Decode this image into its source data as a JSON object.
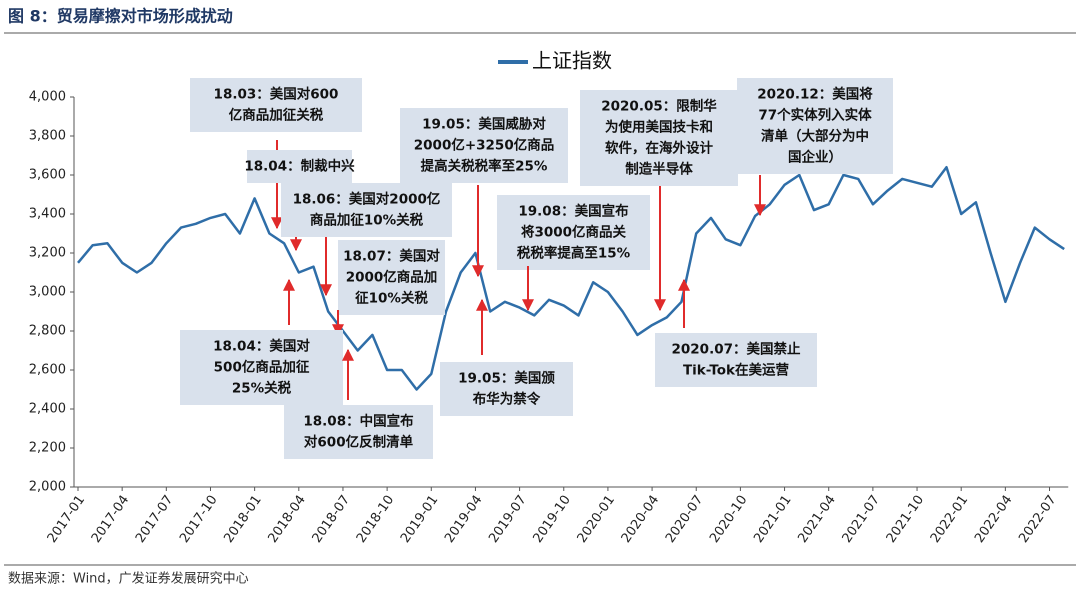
{
  "chart_data": {
    "type": "line",
    "title": "图 8：贸易摩擦对市场形成扰动",
    "source": "数据来源：Wind，广发证券发展研究中心",
    "x": [
      "2017-01",
      "2017-02",
      "2017-03",
      "2017-04",
      "2017-05",
      "2017-06",
      "2017-07",
      "2017-08",
      "2017-09",
      "2017-10",
      "2017-11",
      "2017-12",
      "2018-01",
      "2018-02",
      "2018-03",
      "2018-04",
      "2018-05",
      "2018-06",
      "2018-07",
      "2018-08",
      "2018-09",
      "2018-10",
      "2018-11",
      "2018-12",
      "2019-01",
      "2019-02",
      "2019-03",
      "2019-04",
      "2019-05",
      "2019-06",
      "2019-07",
      "2019-08",
      "2019-09",
      "2019-10",
      "2019-11",
      "2019-12",
      "2020-01",
      "2020-02",
      "2020-03",
      "2020-04",
      "2020-05",
      "2020-06",
      "2020-07",
      "2020-08",
      "2020-09",
      "2020-10",
      "2020-11",
      "2020-12",
      "2021-01",
      "2021-02",
      "2021-03",
      "2021-04",
      "2021-05",
      "2021-06",
      "2021-07",
      "2021-08",
      "2021-09",
      "2021-10",
      "2021-11",
      "2021-12",
      "2022-01",
      "2022-02",
      "2022-03",
      "2022-04",
      "2022-05",
      "2022-06",
      "2022-07",
      "2022-08"
    ],
    "series": [
      {
        "name": "上证指数",
        "color": "#2f6ea8",
        "values": [
          3150,
          3240,
          3250,
          3150,
          3100,
          3150,
          3250,
          3330,
          3350,
          3380,
          3400,
          3300,
          3480,
          3300,
          3250,
          3100,
          3130,
          2900,
          2800,
          2700,
          2780,
          2600,
          2600,
          2500,
          2580,
          2900,
          3100,
          3200,
          2900,
          2950,
          2920,
          2880,
          2960,
          2930,
          2880,
          3050,
          3000,
          2900,
          2780,
          2830,
          2870,
          2950,
          3300,
          3380,
          3270,
          3240,
          3390,
          3450,
          3550,
          3600,
          3420,
          3450,
          3600,
          3580,
          3450,
          3520,
          3580,
          3560,
          3540,
          3640,
          3400,
          3460,
          3200,
          2950,
          3150,
          3330,
          3270,
          3220
        ]
      }
    ],
    "xticks": [
      "2017-01",
      "2017-04",
      "2017-07",
      "2017-10",
      "2018-01",
      "2018-04",
      "2018-07",
      "2018-10",
      "2019-01",
      "2019-04",
      "2019-07",
      "2019-10",
      "2020-01",
      "2020-04",
      "2020-07",
      "2020-10",
      "2021-01",
      "2021-04",
      "2021-07",
      "2021-10",
      "2022-01",
      "2022-04",
      "2022-07"
    ],
    "ylim": [
      2000,
      4000
    ],
    "yticks": [
      {
        "value": 2000,
        "label": "2,000"
      },
      {
        "value": 2200,
        "label": "2,200"
      },
      {
        "value": 2400,
        "label": "2,400"
      },
      {
        "value": 2600,
        "label": "2,600"
      },
      {
        "value": 2800,
        "label": "2,800"
      },
      {
        "value": 3000,
        "label": "3,000"
      },
      {
        "value": 3200,
        "label": "3,200"
      },
      {
        "value": 3400,
        "label": "3,400"
      },
      {
        "value": 3600,
        "label": "3,600"
      },
      {
        "value": 3800,
        "label": "3,800"
      },
      {
        "value": 4000,
        "label": "4,000"
      }
    ],
    "annotations": [
      {
        "lines": [
          "18.03：美国对600",
          "亿商品加征关税"
        ]
      },
      {
        "lines": [
          "18.04：制裁中兴"
        ]
      },
      {
        "lines": [
          "18.06：美国对2000亿",
          "商品加征10%关税"
        ]
      },
      {
        "lines": [
          "18.07：美国对",
          "2000亿商品加",
          "征10%关税"
        ]
      },
      {
        "lines": [
          "19.05：美国威胁对",
          "2000亿+3250亿商品",
          "提高关税税率至25%"
        ]
      },
      {
        "lines": [
          "19.08：美国宣布",
          "将3000亿商品关",
          "税税率提高至15%"
        ]
      },
      {
        "lines": [
          "2020.05：限制华",
          "为使用美国技卡和",
          "软件，在海外设计",
          "制造半导体"
        ]
      },
      {
        "lines": [
          "2020.12：美国将",
          "77个实体列入实体",
          "清单（大部分为中",
          "国企业）"
        ]
      },
      {
        "lines": [
          "18.04：美国对",
          "500亿商品加征",
          "25%关税"
        ]
      },
      {
        "lines": [
          "18.08：中国宣布",
          "对600亿反制清单"
        ]
      },
      {
        "lines": [
          "19.05：美国颁",
          "布华为禁令"
        ]
      },
      {
        "lines": [
          "2020.07：美国禁止",
          "Tik-Tok在美运营"
        ]
      }
    ]
  }
}
